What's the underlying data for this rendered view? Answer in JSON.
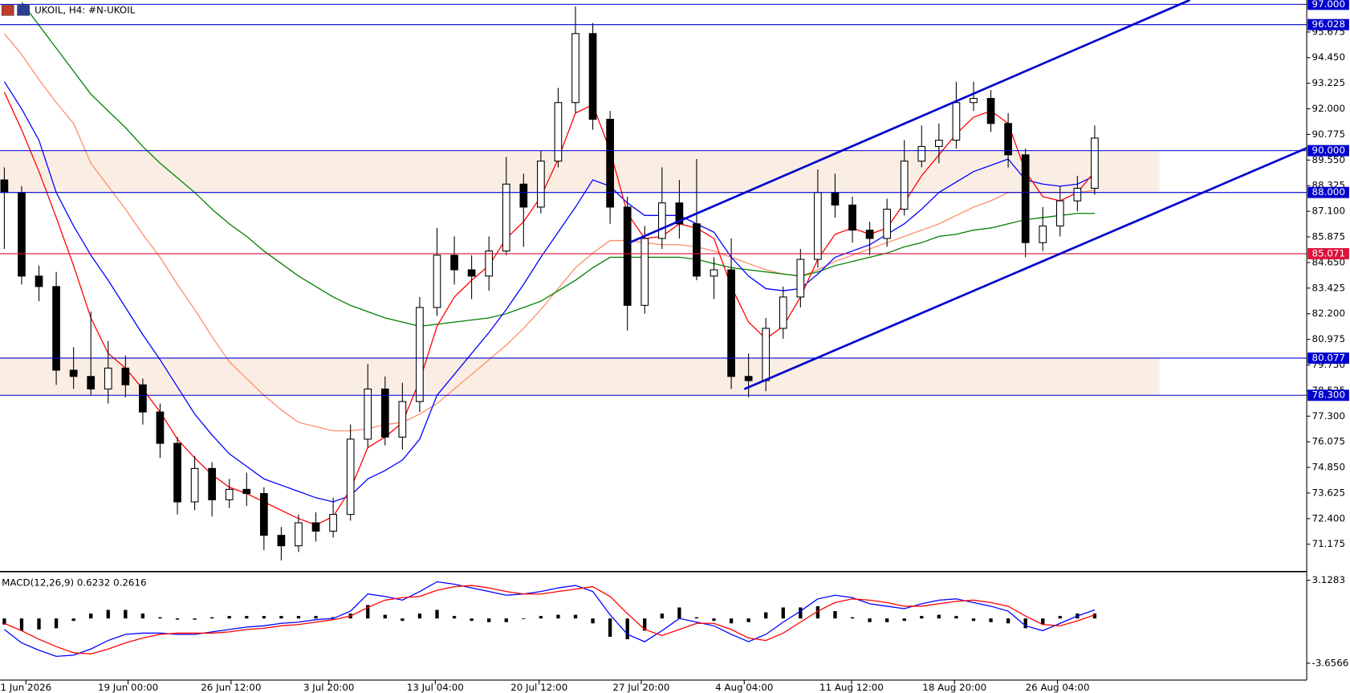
{
  "chart_data": [
    {
      "type": "candlestick",
      "title": "UKOIL, H4:  #N-UKOIL",
      "ylim": [
        69.906,
        97.206
      ],
      "yticks": [
        {
          "value": 95.675,
          "label": "95.675"
        },
        {
          "value": 94.45,
          "label": "94.450"
        },
        {
          "value": 93.225,
          "label": "93.225"
        },
        {
          "value": 92,
          "label": "92.000"
        },
        {
          "value": 90.775,
          "label": "90.775"
        },
        {
          "value": 89.55,
          "label": "89.550"
        },
        {
          "value": 88.325,
          "label": "88.325"
        },
        {
          "value": 87.1,
          "label": "87.100"
        },
        {
          "value": 85.875,
          "label": "85.875"
        },
        {
          "value": 84.65,
          "label": "84.650"
        },
        {
          "value": 83.425,
          "label": "83.425"
        },
        {
          "value": 82.2,
          "label": "82.200"
        },
        {
          "value": 80.975,
          "label": "80.975"
        },
        {
          "value": 79.75,
          "label": "79.750"
        },
        {
          "value": 78.525,
          "label": "78.525"
        },
        {
          "value": 77.3,
          "label": "77.300"
        },
        {
          "value": 76.075,
          "label": "76.075"
        },
        {
          "value": 74.85,
          "label": "74.850"
        },
        {
          "value": 73.625,
          "label": "73.625"
        },
        {
          "value": 72.4,
          "label": "72.400"
        },
        {
          "value": 71.175,
          "label": "71.175"
        }
      ],
      "x_labels": [
        "1 Jun 2026",
        "19 Jun 00:00",
        "26 Jun 12:00",
        "3 Jul 20:00",
        "13 Jul 04:00",
        "20 Jul 12:00",
        "27 Jul 20:00",
        "4 Aug 04:00",
        "11 Aug 12:00",
        "18 Aug 20:00",
        "26 Aug 04:00"
      ],
      "levels": [
        {
          "value": 97,
          "label": "97.000",
          "color": "#0000cd"
        },
        {
          "value": 96.028,
          "label": "96.028",
          "color": "#0000cd"
        },
        {
          "value": 90,
          "label": "90.000",
          "color": "#0000cd"
        },
        {
          "value": 88,
          "label": "88.000",
          "color": "#0000cd"
        },
        {
          "value": 85.071,
          "label": "85.071",
          "color": "#dc143c"
        },
        {
          "value": 80.077,
          "label": "80.077",
          "color": "#0000cd"
        },
        {
          "value": 78.3,
          "label": "78.300",
          "color": "#0000cd"
        }
      ],
      "zones": [
        [
          88,
          90
        ],
        [
          78.3,
          80.077
        ]
      ],
      "open": [
        88.6,
        88.0,
        84.0,
        83.5,
        79.5,
        79.2,
        78.6,
        79.6,
        78.8,
        77.5,
        76.0,
        73.2,
        74.8,
        73.3,
        73.8,
        73.6,
        71.6,
        71.1,
        72.2,
        71.8,
        72.6,
        76.2,
        78.6,
        76.3,
        78.0,
        82.5,
        85.0,
        84.3,
        84.0,
        85.2,
        88.4,
        87.3,
        89.5,
        92.3,
        95.6,
        91.5,
        87.3,
        82.6,
        85.8,
        87.5,
        86.5,
        84.0,
        84.3,
        79.2,
        79.0,
        81.5,
        83.0,
        84.8,
        88.0,
        87.4,
        86.2,
        85.8,
        87.2,
        89.5,
        90.2,
        90.5,
        92.3,
        92.5,
        91.3,
        89.8,
        85.6,
        86.4,
        87.6,
        88.2
      ],
      "high": [
        89.2,
        88.3,
        84.5,
        84.2,
        80.6,
        82.3,
        80.9,
        80.2,
        79.1,
        77.9,
        76.3,
        75.4,
        75.1,
        74.3,
        74.6,
        73.9,
        72.0,
        72.6,
        72.7,
        73.4,
        76.9,
        79.8,
        79.2,
        78.9,
        83.0,
        86.3,
        85.9,
        85.0,
        85.9,
        89.7,
        88.9,
        90.0,
        93.0,
        96.9,
        96.1,
        91.9,
        87.8,
        86.4,
        89.2,
        88.6,
        89.6,
        84.9,
        85.8,
        80.3,
        82.0,
        83.5,
        85.3,
        89.1,
        88.9,
        87.8,
        86.6,
        87.7,
        90.5,
        91.2,
        91.3,
        93.3,
        93.3,
        92.9,
        91.8,
        90.1,
        87.3,
        88.3,
        88.8,
        91.2
      ],
      "low": [
        85.3,
        83.6,
        82.8,
        78.8,
        78.6,
        78.3,
        77.9,
        78.2,
        76.9,
        75.3,
        72.6,
        72.8,
        72.5,
        72.9,
        73.0,
        70.9,
        70.4,
        70.8,
        71.3,
        71.5,
        72.3,
        75.8,
        75.9,
        75.7,
        77.5,
        82.1,
        83.6,
        82.9,
        83.3,
        85.0,
        85.4,
        87.0,
        89.2,
        91.8,
        91.0,
        86.5,
        81.4,
        82.2,
        85.3,
        85.8,
        83.8,
        82.9,
        78.6,
        78.2,
        78.5,
        81.0,
        82.5,
        84.4,
        86.8,
        85.6,
        85.0,
        85.4,
        86.9,
        89.2,
        89.4,
        90.1,
        91.9,
        90.9,
        89.2,
        84.9,
        85.2,
        85.9,
        87.1,
        87.9
      ],
      "close": [
        88.0,
        84.0,
        83.5,
        79.5,
        79.2,
        78.6,
        79.6,
        78.8,
        77.5,
        76.0,
        73.2,
        74.8,
        73.3,
        73.8,
        73.6,
        71.6,
        71.1,
        72.2,
        71.8,
        72.6,
        76.2,
        78.6,
        76.3,
        78.0,
        82.5,
        85.0,
        84.3,
        84.0,
        85.2,
        88.4,
        87.3,
        89.5,
        92.3,
        95.6,
        91.5,
        87.3,
        82.6,
        85.8,
        87.5,
        86.5,
        84.0,
        84.3,
        79.2,
        79.0,
        81.5,
        83.0,
        84.8,
        88.0,
        87.4,
        86.2,
        85.8,
        87.2,
        89.5,
        90.2,
        90.5,
        92.3,
        92.5,
        91.3,
        89.8,
        85.6,
        86.4,
        87.6,
        88.2,
        90.6
      ],
      "series": [
        {
          "color": "#ff8c69",
          "values": [
            95.6,
            94.6,
            93.4,
            92.3,
            91.3,
            89.4,
            88.3,
            87.2,
            86.0,
            84.9,
            83.6,
            82.4,
            81.1,
            79.9,
            79.1,
            78.3,
            77.6,
            77.0,
            76.8,
            76.6,
            76.6,
            76.7,
            76.9,
            77.0,
            77.4,
            77.9,
            78.6,
            79.3,
            80.0,
            80.7,
            81.5,
            82.4,
            83.4,
            84.4,
            85.1,
            85.7,
            85.7,
            85.6,
            85.5,
            85.5,
            85.4,
            85.2,
            84.9,
            84.6,
            84.3,
            84.1,
            84.0,
            84.3,
            84.7,
            85.0,
            85.3,
            85.6,
            85.9,
            86.2,
            86.5,
            86.9,
            87.3,
            87.6,
            88.0,
            88.0,
            88.0,
            88.0,
            88.0,
            88.1
          ]
        },
        {
          "color": "#008000",
          "values": [
            null,
            97.1,
            96.0,
            94.9,
            93.8,
            92.7,
            91.9,
            91.1,
            90.2,
            89.4,
            88.7,
            88.0,
            87.2,
            86.5,
            85.9,
            85.2,
            84.6,
            84.0,
            83.5,
            83.0,
            82.6,
            82.3,
            82.0,
            81.8,
            81.6,
            81.7,
            81.8,
            81.9,
            82.0,
            82.2,
            82.5,
            82.8,
            83.3,
            83.8,
            84.4,
            84.9,
            84.9,
            84.9,
            84.9,
            84.9,
            84.8,
            84.6,
            84.4,
            84.3,
            84.2,
            84.1,
            84.0,
            84.2,
            84.5,
            84.7,
            84.9,
            85.1,
            85.4,
            85.6,
            85.9,
            86.0,
            86.2,
            86.3,
            86.5,
            86.7,
            86.8,
            86.9,
            87.0,
            87.0
          ]
        },
        {
          "color": "#0000ff",
          "values": [
            93.3,
            92.0,
            90.5,
            88.0,
            86.4,
            85.0,
            83.8,
            82.5,
            81.2,
            80.0,
            78.7,
            77.4,
            76.4,
            75.5,
            74.9,
            74.3,
            74.0,
            73.7,
            73.4,
            73.2,
            73.5,
            74.3,
            74.7,
            75.2,
            76.2,
            78.3,
            79.3,
            80.3,
            81.3,
            82.4,
            83.6,
            84.9,
            86.1,
            87.3,
            88.6,
            88.3,
            87.5,
            86.9,
            86.9,
            86.9,
            86.5,
            86.1,
            84.9,
            84.0,
            83.4,
            83.3,
            83.4,
            84.1,
            84.9,
            85.2,
            85.5,
            86.0,
            86.5,
            87.2,
            88.0,
            88.5,
            89.0,
            89.3,
            89.6,
            88.6,
            88.4,
            88.3,
            88.4,
            88.8
          ]
        },
        {
          "color": "#ff0000",
          "values": [
            92.8,
            91.0,
            89.0,
            86.8,
            84.5,
            82.0,
            80.3,
            79.6,
            78.6,
            77.5,
            76.2,
            75.3,
            74.5,
            73.9,
            73.6,
            73.2,
            72.8,
            72.4,
            72.1,
            72.5,
            73.8,
            75.8,
            76.3,
            77.0,
            79.0,
            81.6,
            83.0,
            83.8,
            84.5,
            85.8,
            86.6,
            87.8,
            89.6,
            91.8,
            92.2,
            90.0,
            87.0,
            85.8,
            85.9,
            86.5,
            86.3,
            85.8,
            83.5,
            81.8,
            81.0,
            81.6,
            83.0,
            84.8,
            86.0,
            86.3,
            86.0,
            86.3,
            87.5,
            88.8,
            89.8,
            90.8,
            91.6,
            91.9,
            91.3,
            89.0,
            87.8,
            87.6,
            88.0,
            89.0
          ]
        }
      ]
    },
    {
      "type": "macd",
      "title": "MACD(12,26,9) 0.6232 0.2616",
      "ylim": [
        -5.04,
        3.76
      ],
      "yticks": [
        3.1283,
        -3.6566
      ],
      "values": [
        -0.5,
        -1.0,
        -0.9,
        -0.8,
        -0.2,
        0.4,
        0.7,
        0.7,
        0.4,
        0.1,
        -0.1,
        -0.1,
        0.1,
        0.2,
        0.2,
        0.2,
        0.2,
        0.2,
        0.2,
        0.1,
        0.4,
        1.1,
        0.3,
        -0.2,
        0.4,
        0.7,
        0.2,
        -0.2,
        -0.3,
        -0.3,
        0.0,
        0.2,
        0.3,
        0.3,
        -0.4,
        -1.5,
        -1.7,
        -1.0,
        0.4,
        0.9,
        0.1,
        -0.2,
        -0.4,
        -0.3,
        0.5,
        0.9,
        0.9,
        1.0,
        0.6,
        0.1,
        -0.3,
        -0.3,
        -0.2,
        0.2,
        0.3,
        0.2,
        -0.2,
        -0.3,
        -0.4,
        -0.8,
        -0.5,
        0.2,
        0.4,
        0.4
      ],
      "color": "#000000",
      "series": [
        {
          "color": "#0000ff",
          "values": [
            -0.9,
            -2.0,
            -2.6,
            -3.1,
            -3.0,
            -2.5,
            -1.8,
            -1.3,
            -1.2,
            -1.2,
            -1.3,
            -1.3,
            -1.1,
            -0.9,
            -0.7,
            -0.6,
            -0.4,
            -0.3,
            -0.1,
            0.0,
            0.6,
            2.0,
            1.8,
            1.5,
            2.2,
            3.0,
            2.8,
            2.5,
            2.2,
            1.9,
            2.0,
            2.2,
            2.5,
            2.7,
            2.2,
            0.3,
            -1.3,
            -1.9,
            -1.0,
            0.0,
            -0.3,
            -0.6,
            -1.3,
            -1.9,
            -1.3,
            -0.3,
            0.6,
            1.6,
            1.9,
            1.7,
            1.2,
            1.0,
            0.8,
            1.2,
            1.5,
            1.6,
            1.3,
            1.0,
            0.6,
            -0.6,
            -1.0,
            -0.4,
            0.2,
            0.7
          ]
        },
        {
          "color": "#ff0000",
          "values": [
            -0.4,
            -1.0,
            -1.7,
            -2.3,
            -2.8,
            -2.9,
            -2.5,
            -2.0,
            -1.6,
            -1.3,
            -1.2,
            -1.2,
            -1.2,
            -1.1,
            -0.9,
            -0.8,
            -0.6,
            -0.5,
            -0.3,
            -0.1,
            0.2,
            0.9,
            1.5,
            1.7,
            1.8,
            2.3,
            2.6,
            2.7,
            2.5,
            2.2,
            2.0,
            2.0,
            2.2,
            2.4,
            2.6,
            1.8,
            0.4,
            -0.9,
            -1.4,
            -0.9,
            -0.4,
            -0.4,
            -0.9,
            -1.6,
            -1.8,
            -1.2,
            -0.3,
            0.6,
            1.3,
            1.6,
            1.5,
            1.3,
            1.0,
            1.0,
            1.2,
            1.4,
            1.5,
            1.3,
            1.0,
            0.2,
            -0.5,
            -0.6,
            -0.2,
            0.3
          ]
        }
      ]
    }
  ]
}
